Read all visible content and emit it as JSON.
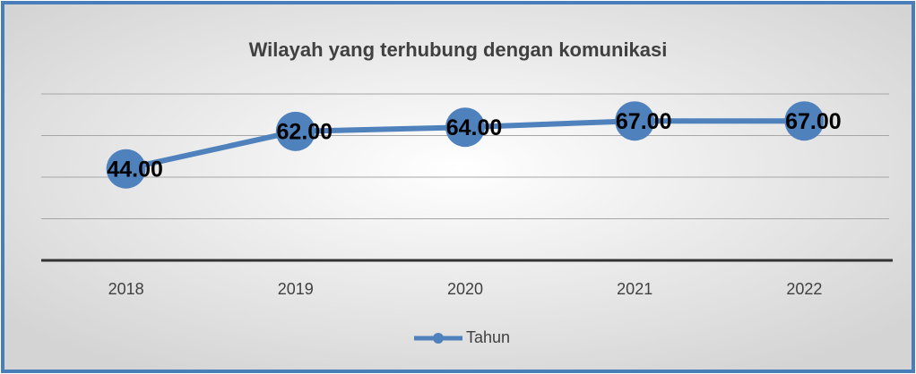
{
  "chart_data": {
    "type": "line",
    "title": "Wilayah yang terhubung dengan komunikasi",
    "categories": [
      "2018",
      "2019",
      "2020",
      "2021",
      "2022"
    ],
    "series": [
      {
        "name": "Tahun",
        "color": "#4f81bd",
        "values": [
          44,
          62,
          64,
          67,
          67
        ],
        "value_labels": [
          "44.00",
          "62.00",
          "64.00",
          "67.00",
          "67.00"
        ]
      }
    ],
    "ylim": [
      0,
      80
    ],
    "yticks": [
      0,
      20,
      40,
      60,
      80
    ],
    "grid": true,
    "legend": "bottom"
  }
}
